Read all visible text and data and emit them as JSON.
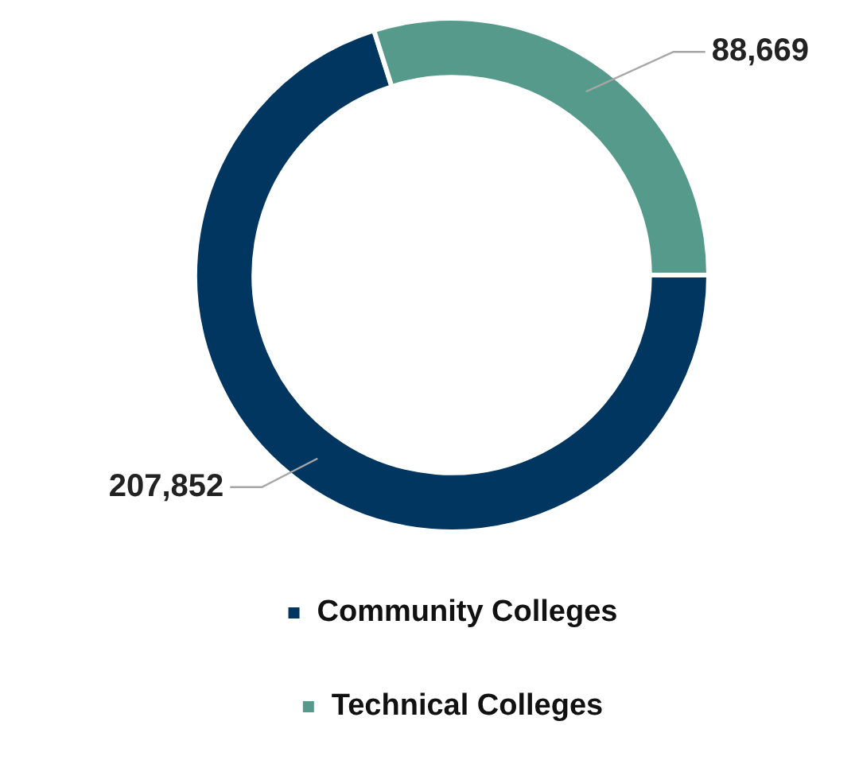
{
  "chart_data": {
    "type": "donut",
    "categories": [
      "Community Colleges",
      "Technical Colleges"
    ],
    "values": [
      207852,
      88669
    ],
    "colors": [
      "#003660",
      "#559a8a"
    ],
    "value_labels": [
      "207,852",
      "88,669"
    ],
    "legend": "bottom"
  }
}
